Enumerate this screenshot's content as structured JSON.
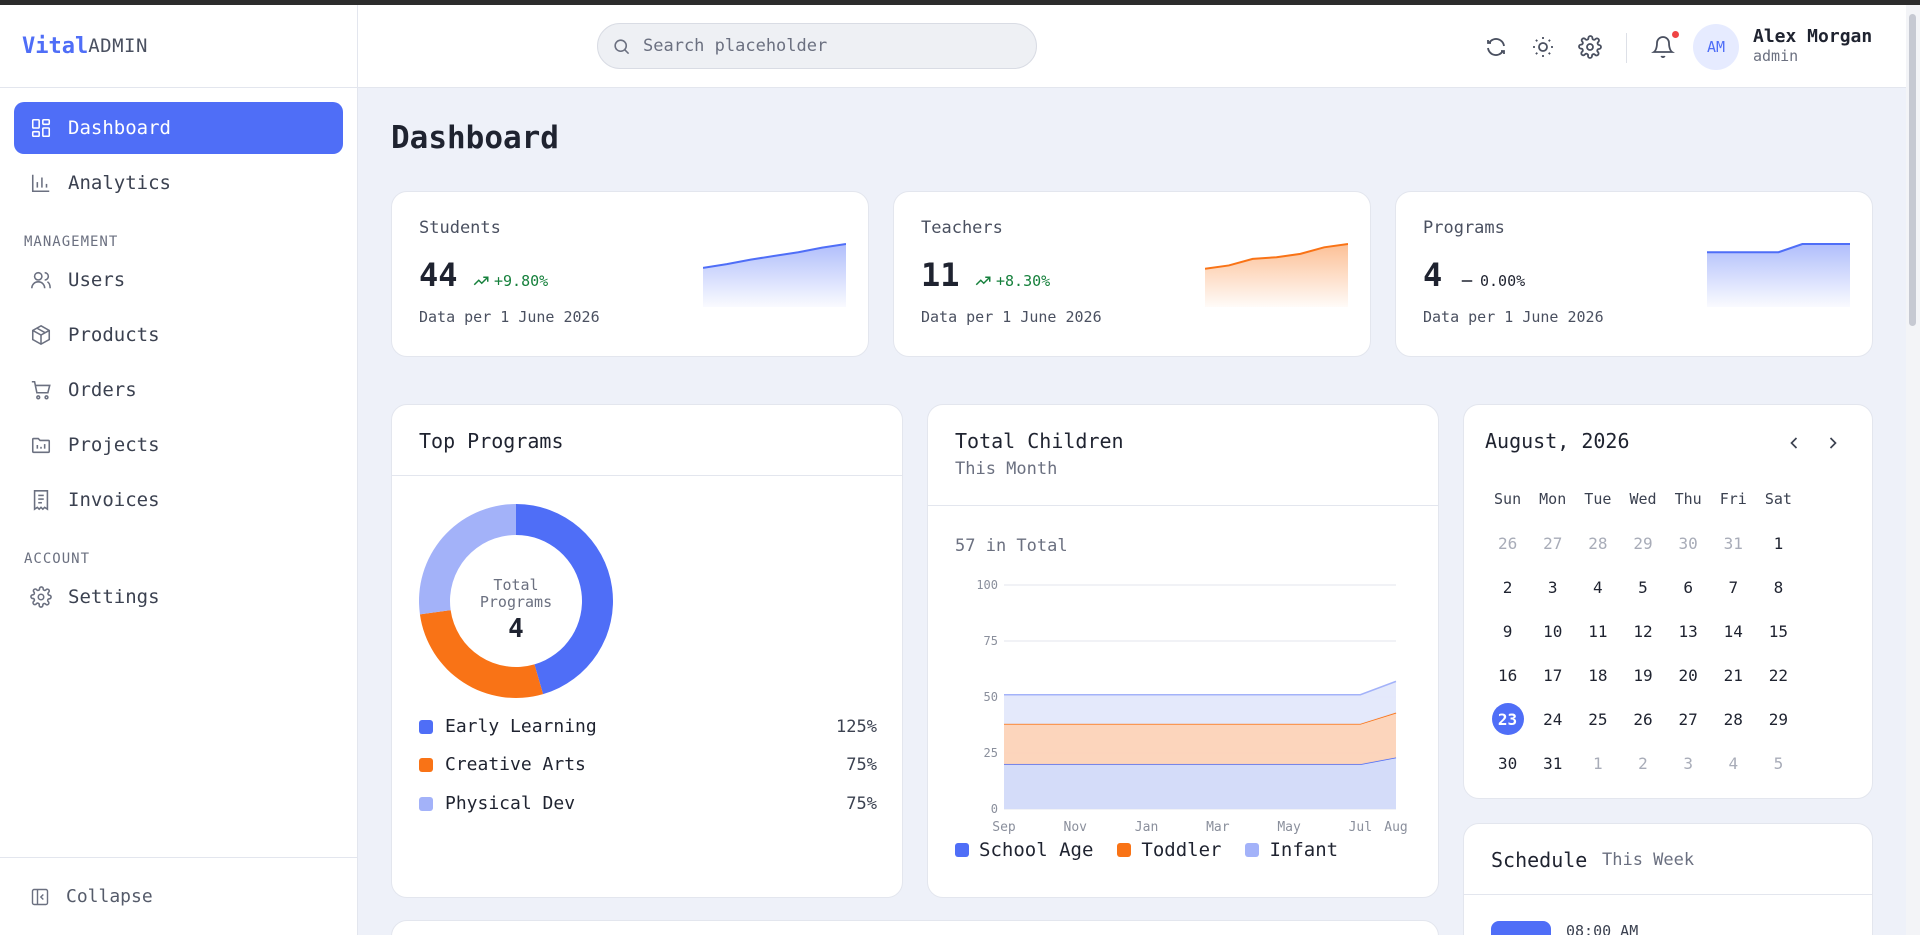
{
  "brand": {
    "part1": "Vital",
    "part2": "ADMIN"
  },
  "sidebar": {
    "items": [
      {
        "label": "Dashboard",
        "icon": "dashboard-icon",
        "active": true
      },
      {
        "label": "Analytics",
        "icon": "bar-chart-icon"
      }
    ],
    "sections": [
      {
        "title": "MANAGEMENT",
        "items": [
          {
            "label": "Users",
            "icon": "users-icon"
          },
          {
            "label": "Products",
            "icon": "box-icon"
          },
          {
            "label": "Orders",
            "icon": "cart-icon"
          },
          {
            "label": "Projects",
            "icon": "folder-icon"
          },
          {
            "label": "Invoices",
            "icon": "invoice-icon"
          }
        ]
      },
      {
        "title": "ACCOUNT",
        "items": [
          {
            "label": "Settings",
            "icon": "gear-icon"
          }
        ]
      }
    ],
    "collapse_label": "Collapse"
  },
  "header": {
    "search_placeholder": "Search placeholder",
    "user": {
      "initials": "AM",
      "name": "Alex Morgan",
      "role": "admin"
    }
  },
  "page": {
    "title": "Dashboard"
  },
  "stats": [
    {
      "label": "Students",
      "value": "44",
      "change": "+9.80%",
      "trend": "up",
      "note": "Data per 1 June 2026",
      "color": "#4f6ef7",
      "spark": [
        10,
        14,
        19,
        23,
        27,
        32,
        36
      ]
    },
    {
      "label": "Teachers",
      "value": "11",
      "change": "+8.30%",
      "trend": "up",
      "note": "Data per 1 June 2026",
      "color": "#f97316",
      "spark": [
        5,
        7,
        11,
        12,
        14,
        18,
        20
      ]
    },
    {
      "label": "Programs",
      "value": "4",
      "change": "0.00%",
      "trend": "flat",
      "note": "Data per 1 June 2026",
      "color": "#4f6ef7",
      "spark": [
        3,
        3,
        3,
        3,
        4,
        4,
        4
      ]
    }
  ],
  "top_programs": {
    "title": "Top Programs",
    "center_label_1": "Total",
    "center_label_2": "Programs",
    "center_value": "4",
    "items": [
      {
        "label": "Early Learning",
        "value": "125%",
        "share": 45.5,
        "color": "#4f6ef7"
      },
      {
        "label": "Creative Arts",
        "value": "75%",
        "share": 27.3,
        "color": "#f97316"
      },
      {
        "label": "Physical Dev",
        "value": "75%",
        "share": 27.2,
        "color": "#a3b2f9"
      }
    ]
  },
  "total_children": {
    "title": "Total Children",
    "subtitle": "This Month",
    "total_text": "57 in Total"
  },
  "chart_data": {
    "type": "area",
    "x": [
      "Sep",
      "Nov",
      "Jan",
      "Mar",
      "May",
      "Jul",
      "Aug"
    ],
    "x_pos": [
      0,
      2,
      4,
      6,
      8,
      10,
      11
    ],
    "yticks": [
      0,
      25,
      50,
      75,
      100
    ],
    "ylim": [
      0,
      100
    ],
    "stacked": true,
    "series": [
      {
        "name": "School Age",
        "color": "#4f6ef7",
        "values": [
          20,
          20,
          20,
          20,
          20,
          20,
          23
        ]
      },
      {
        "name": "Toddler",
        "color": "#f97316",
        "values": [
          18,
          18,
          18,
          18,
          18,
          18,
          20
        ]
      },
      {
        "name": "Infant",
        "color": "#a3b2f9",
        "values": [
          13,
          13,
          13,
          13,
          13,
          13,
          14
        ]
      }
    ],
    "legend": "bottom",
    "grid": true
  },
  "calendar": {
    "title": "August, 2026",
    "dow": [
      "Sun",
      "Mon",
      "Tue",
      "Wed",
      "Thu",
      "Fri",
      "Sat"
    ],
    "weeks": [
      [
        [
          "26",
          1
        ],
        [
          "27",
          1
        ],
        [
          "28",
          1
        ],
        [
          "29",
          1
        ],
        [
          "30",
          1
        ],
        [
          "31",
          1
        ],
        [
          "1",
          0
        ]
      ],
      [
        [
          "2",
          0
        ],
        [
          "3",
          0
        ],
        [
          "4",
          0
        ],
        [
          "5",
          0
        ],
        [
          "6",
          0
        ],
        [
          "7",
          0
        ],
        [
          "8",
          0
        ]
      ],
      [
        [
          "9",
          0
        ],
        [
          "10",
          0
        ],
        [
          "11",
          0
        ],
        [
          "12",
          0
        ],
        [
          "13",
          0
        ],
        [
          "14",
          0
        ],
        [
          "15",
          0
        ]
      ],
      [
        [
          "16",
          0
        ],
        [
          "17",
          0
        ],
        [
          "18",
          0
        ],
        [
          "19",
          0
        ],
        [
          "20",
          0
        ],
        [
          "21",
          0
        ],
        [
          "22",
          0
        ]
      ],
      [
        [
          "23",
          2
        ],
        [
          "24",
          0
        ],
        [
          "25",
          0
        ],
        [
          "26",
          0
        ],
        [
          "27",
          0
        ],
        [
          "28",
          0
        ],
        [
          "29",
          0
        ]
      ],
      [
        [
          "30",
          0
        ],
        [
          "31",
          0
        ],
        [
          "1",
          1
        ],
        [
          "2",
          1
        ],
        [
          "3",
          1
        ],
        [
          "4",
          1
        ],
        [
          "5",
          1
        ]
      ]
    ]
  },
  "schedule": {
    "title": "Schedule",
    "subtitle": "This Week",
    "first_time": "08:00 AM"
  }
}
